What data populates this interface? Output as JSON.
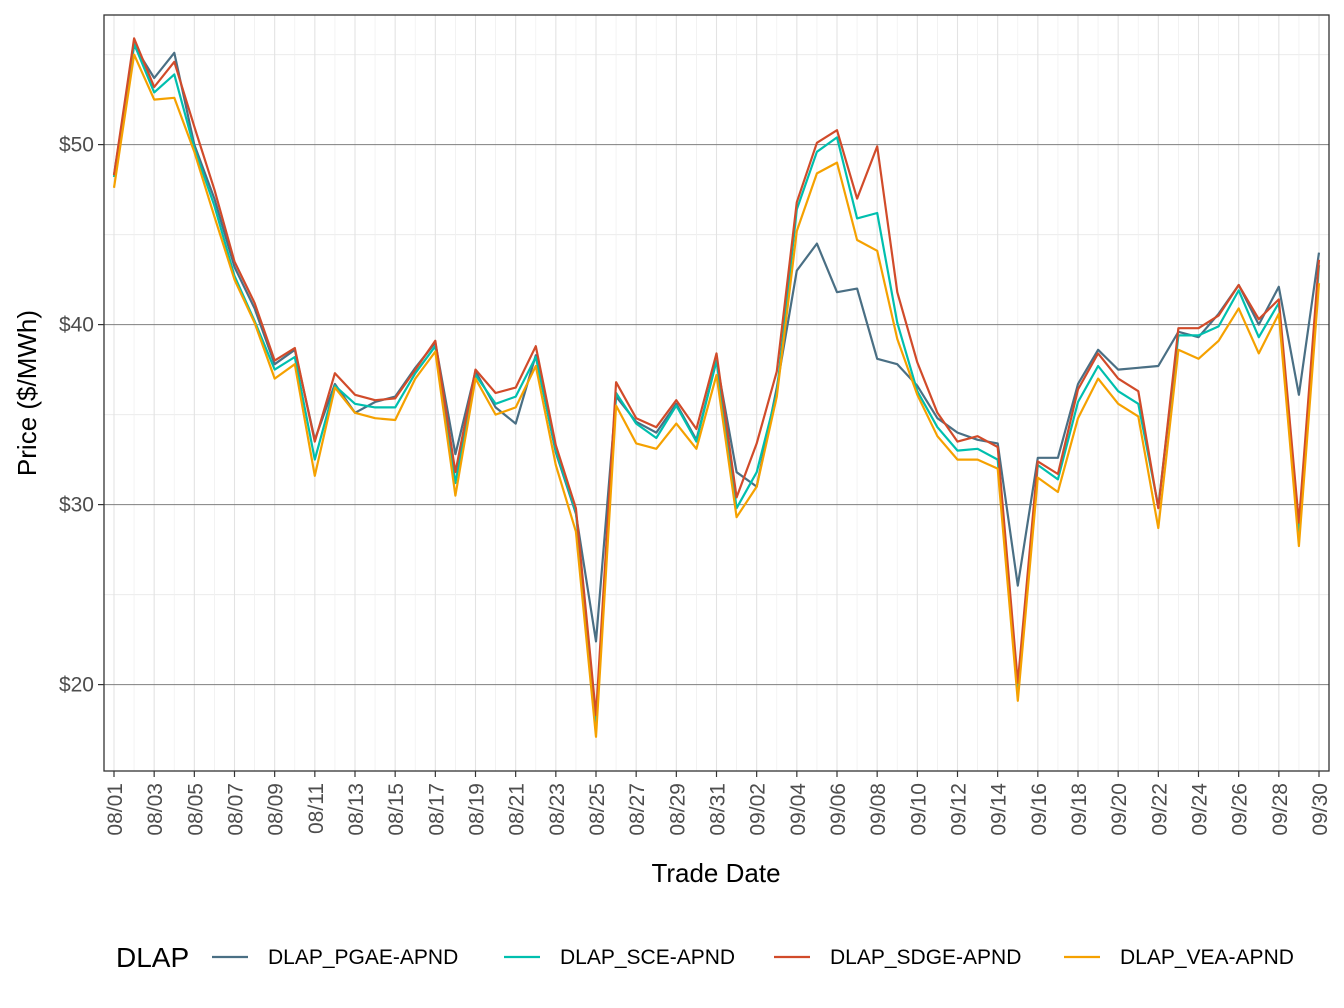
{
  "chart_data": {
    "type": "line",
    "xlabel": "Trade Date",
    "ylabel": "Price ($/MWh)",
    "x": [
      "08/01",
      "08/02",
      "08/03",
      "08/04",
      "08/05",
      "08/06",
      "08/07",
      "08/08",
      "08/09",
      "08/10",
      "08/11",
      "08/12",
      "08/13",
      "08/14",
      "08/15",
      "08/16",
      "08/17",
      "08/18",
      "08/19",
      "08/20",
      "08/21",
      "08/22",
      "08/23",
      "08/24",
      "08/25",
      "08/26",
      "08/27",
      "08/28",
      "08/29",
      "08/30",
      "08/31",
      "09/01",
      "09/02",
      "09/03",
      "09/04",
      "09/05",
      "09/06",
      "09/07",
      "09/08",
      "09/09",
      "09/10",
      "09/11",
      "09/12",
      "09/13",
      "09/14",
      "09/15",
      "09/16",
      "09/17",
      "09/18",
      "09/19",
      "09/20",
      "09/21",
      "09/22",
      "09/23",
      "09/24",
      "09/25",
      "09/26",
      "09/27",
      "09/28",
      "09/29",
      "09/30"
    ],
    "x_tick_labels": [
      "08/01",
      "08/03",
      "08/05",
      "08/07",
      "08/09",
      "08/11",
      "08/13",
      "08/15",
      "08/17",
      "08/19",
      "08/21",
      "08/23",
      "08/25",
      "08/27",
      "08/29",
      "08/31",
      "09/02",
      "09/04",
      "09/06",
      "09/08",
      "09/10",
      "09/12",
      "09/14",
      "09/16",
      "09/18",
      "09/20",
      "09/22",
      "09/24",
      "09/26",
      "09/28",
      "09/30"
    ],
    "y_ticks": [
      20,
      30,
      40,
      50
    ],
    "y_tick_labels": [
      "$20",
      "$30",
      "$40",
      "$50"
    ],
    "ylim": [
      15.2,
      57.2
    ],
    "grid": true,
    "legend": {
      "title": "DLAP",
      "position": "bottom"
    },
    "series": [
      {
        "name": "DLAP_PGAE-APND",
        "color": "#4a6f84",
        "values": [
          48.3,
          55.5,
          53.7,
          55.1,
          50.0,
          47.0,
          43.2,
          40.9,
          37.8,
          38.6,
          33.6,
          36.7,
          35.1,
          35.7,
          36.0,
          37.6,
          39.0,
          32.8,
          37.4,
          35.4,
          34.5,
          38.3,
          32.9,
          29.5,
          22.4,
          36.0,
          34.6,
          34.0,
          35.6,
          33.6,
          38.0,
          31.8,
          31.0,
          36.5,
          43.0,
          44.5,
          41.8,
          42.0,
          38.1,
          37.8,
          36.6,
          34.8,
          34.0,
          33.6,
          33.4,
          25.5,
          32.6,
          32.6,
          36.7,
          38.6,
          37.5,
          37.6,
          37.7,
          39.6,
          39.3,
          40.6,
          42.2,
          40.0,
          42.1,
          36.1,
          44.0
        ]
      },
      {
        "name": "DLAP_SCE-APND",
        "color": "#00bfae",
        "values": [
          48.2,
          55.6,
          52.9,
          53.9,
          49.8,
          46.6,
          42.7,
          40.2,
          37.5,
          38.2,
          32.5,
          36.6,
          35.6,
          35.4,
          35.4,
          37.3,
          38.8,
          31.2,
          37.2,
          35.6,
          36.0,
          38.2,
          33.0,
          29.6,
          17.6,
          36.2,
          34.5,
          33.7,
          35.5,
          33.5,
          38.0,
          29.8,
          31.8,
          36.2,
          46.4,
          49.6,
          50.4,
          45.9,
          46.2,
          40.1,
          36.3,
          34.3,
          33.0,
          33.1,
          32.5,
          19.6,
          32.2,
          31.4,
          35.7,
          37.7,
          36.3,
          35.6,
          29.9,
          39.4,
          39.4,
          39.9,
          41.9,
          39.3,
          41.2,
          28.3,
          43.3
        ]
      },
      {
        "name": "DLAP_SDGE-APND",
        "color": "#d14b2a",
        "values": [
          48.3,
          55.9,
          53.2,
          54.6,
          51.0,
          47.5,
          43.5,
          41.2,
          38.0,
          38.7,
          33.5,
          37.3,
          36.1,
          35.8,
          35.9,
          37.5,
          39.1,
          31.8,
          37.5,
          36.2,
          36.5,
          38.8,
          33.3,
          29.8,
          18.3,
          36.8,
          34.8,
          34.3,
          35.8,
          34.2,
          38.4,
          30.4,
          33.4,
          37.4,
          46.8,
          50.1,
          50.8,
          47.0,
          49.9,
          41.8,
          37.9,
          35.1,
          33.5,
          33.8,
          33.2,
          20.1,
          32.4,
          31.7,
          36.4,
          38.4,
          37.0,
          36.3,
          29.8,
          39.8,
          39.8,
          40.5,
          42.2,
          40.3,
          41.4,
          29.0,
          43.6
        ]
      },
      {
        "name": "DLAP_VEA-APND",
        "color": "#f5a100",
        "values": [
          47.6,
          55.0,
          52.5,
          52.6,
          49.6,
          46.0,
          42.5,
          40.1,
          37.0,
          37.8,
          31.6,
          36.5,
          35.1,
          34.8,
          34.7,
          37.0,
          38.5,
          30.5,
          37.0,
          35.0,
          35.4,
          37.7,
          32.2,
          28.5,
          17.1,
          35.5,
          33.4,
          33.1,
          34.5,
          33.1,
          37.2,
          29.3,
          31.0,
          36.0,
          45.2,
          48.4,
          49.0,
          44.7,
          44.1,
          39.2,
          36.1,
          33.8,
          32.5,
          32.5,
          32.0,
          19.1,
          31.5,
          30.7,
          34.8,
          37.0,
          35.6,
          34.9,
          28.7,
          38.6,
          38.1,
          39.1,
          40.9,
          38.4,
          40.6,
          27.7,
          42.3
        ]
      }
    ]
  }
}
